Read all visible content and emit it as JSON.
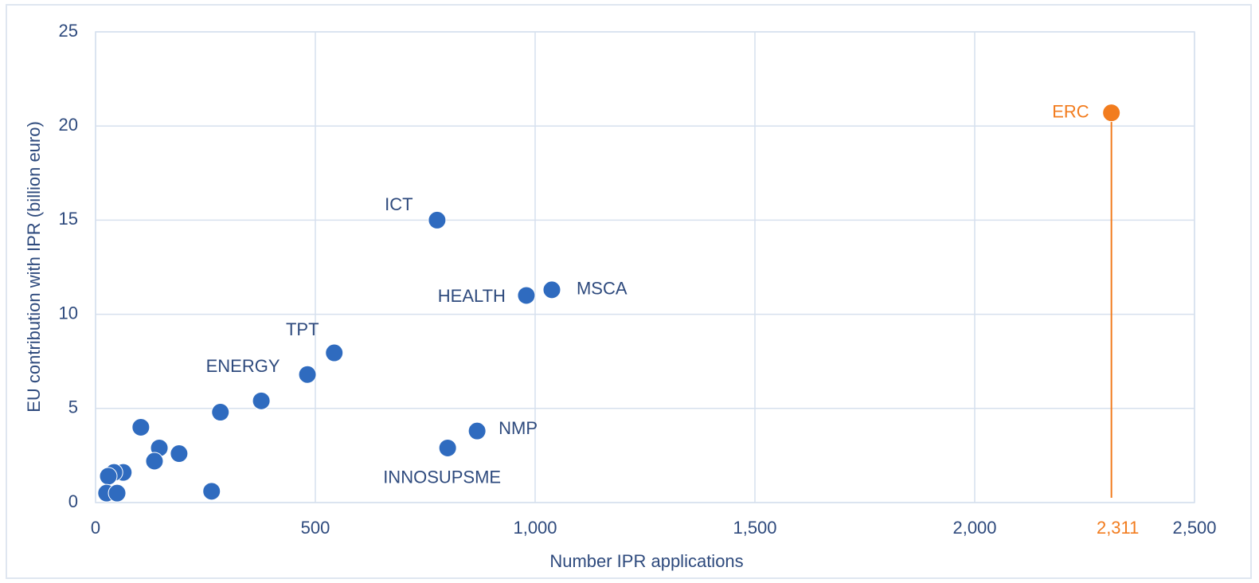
{
  "chart_data": {
    "type": "scatter",
    "xlabel": "Number  IPR applications",
    "ylabel": "EU contribution with IPR (billion euro)",
    "xlim": [
      0,
      2500
    ],
    "ylim": [
      0,
      25
    ],
    "xticks": [
      0,
      500,
      {
        "value": 1000,
        "label": "1,000"
      },
      {
        "value": 1500,
        "label": "1,500"
      },
      {
        "value": 2000,
        "label": "2,000"
      },
      {
        "value": 2500,
        "label": "2,500"
      }
    ],
    "yticks": [
      0,
      5,
      10,
      15,
      20,
      25
    ],
    "grid": true,
    "highlight_x": {
      "value": 2311,
      "label": "2,311",
      "color": "#f27c1e"
    },
    "x": [
      2311,
      777,
      1038,
      980,
      543,
      482,
      377,
      284,
      868,
      801,
      103,
      145,
      134,
      190,
      264,
      63,
      42,
      29,
      25,
      49
    ],
    "values": [
      20.7,
      15.0,
      11.3,
      11.0,
      7.95,
      6.8,
      5.4,
      4.8,
      3.8,
      2.9,
      4.0,
      2.9,
      2.2,
      2.6,
      0.6,
      1.6,
      1.6,
      1.4,
      0.5,
      0.5
    ],
    "labels": [
      "ERC",
      "ICT",
      "MSCA",
      "HEALTH",
      "TPT",
      "ENERGY",
      null,
      null,
      "NMP",
      "INNOSUPSME",
      null,
      null,
      null,
      null,
      null,
      null,
      null,
      null,
      null,
      null
    ],
    "colors": [
      "#f27c1e",
      "#2f6bbf",
      "#2f6bbf",
      "#2f6bbf",
      "#2f6bbf",
      "#2f6bbf",
      "#2f6bbf",
      "#2f6bbf",
      "#2f6bbf",
      "#2f6bbf",
      "#2f6bbf",
      "#2f6bbf",
      "#2f6bbf",
      "#2f6bbf",
      "#2f6bbf",
      "#2f6bbf",
      "#2f6bbf",
      "#2f6bbf",
      "#2f6bbf",
      "#2f6bbf"
    ]
  }
}
